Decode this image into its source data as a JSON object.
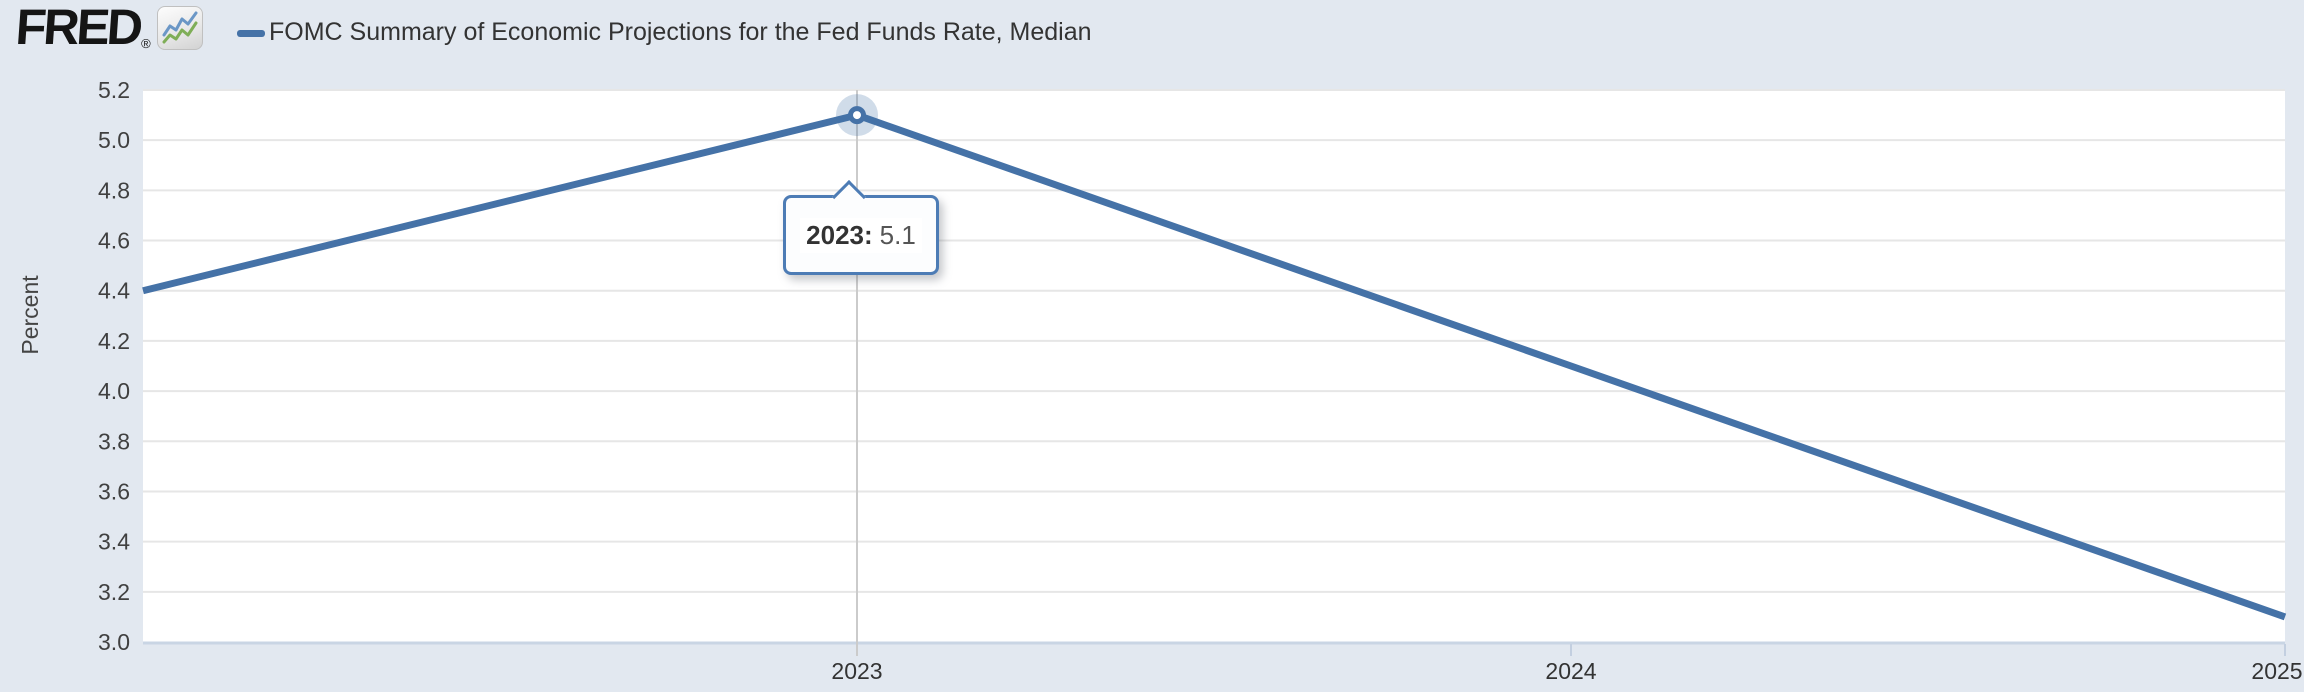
{
  "header": {
    "logo_text": "FRED",
    "logo_registered": "®",
    "legend_label": "FOMC Summary of Economic Projections for the Fed Funds Rate, Median"
  },
  "tooltip": {
    "label": "2023:",
    "value": "5.1"
  },
  "chart_data": {
    "type": "line",
    "title": "FOMC Summary of Economic Projections for the Fed Funds Rate, Median",
    "ylabel": "Percent",
    "xlabel": "",
    "x": [
      2022,
      2023,
      2024,
      2025
    ],
    "values": [
      4.4,
      5.1,
      4.1,
      3.1
    ],
    "series_name": "FOMC Summary of Economic Projections for the Fed Funds Rate, Median",
    "xlim": [
      2022,
      2025
    ],
    "ylim": [
      3.0,
      5.2
    ],
    "ytick_step": 0.2,
    "ytick_labels": [
      "5.2",
      "5.0",
      "4.8",
      "4.6",
      "4.4",
      "4.2",
      "4.0",
      "3.8",
      "3.6",
      "3.4",
      "3.2",
      "3.0"
    ],
    "xticks": [
      2023,
      2024,
      2025
    ],
    "xtick_labels": [
      "2023",
      "2024",
      "2025"
    ],
    "grid": "horizontal",
    "legend_position": "top-left",
    "highlight": {
      "x": 2023,
      "y": 5.1,
      "tooltip": "2023: 5.1"
    },
    "colors": {
      "series": "#4572a7",
      "halo": "rgba(69,114,167,0.25)",
      "crosshair": "#cbcbcb",
      "gridline": "#e6e6e6",
      "axis_line": "#c9d5e4",
      "tick_mark": "#c3cfe0",
      "background": "#e2e8f0",
      "plot_background": "#ffffff",
      "tick_label": "#404040",
      "logo_blue": "#6b97c6",
      "logo_green": "#7fae57"
    }
  }
}
